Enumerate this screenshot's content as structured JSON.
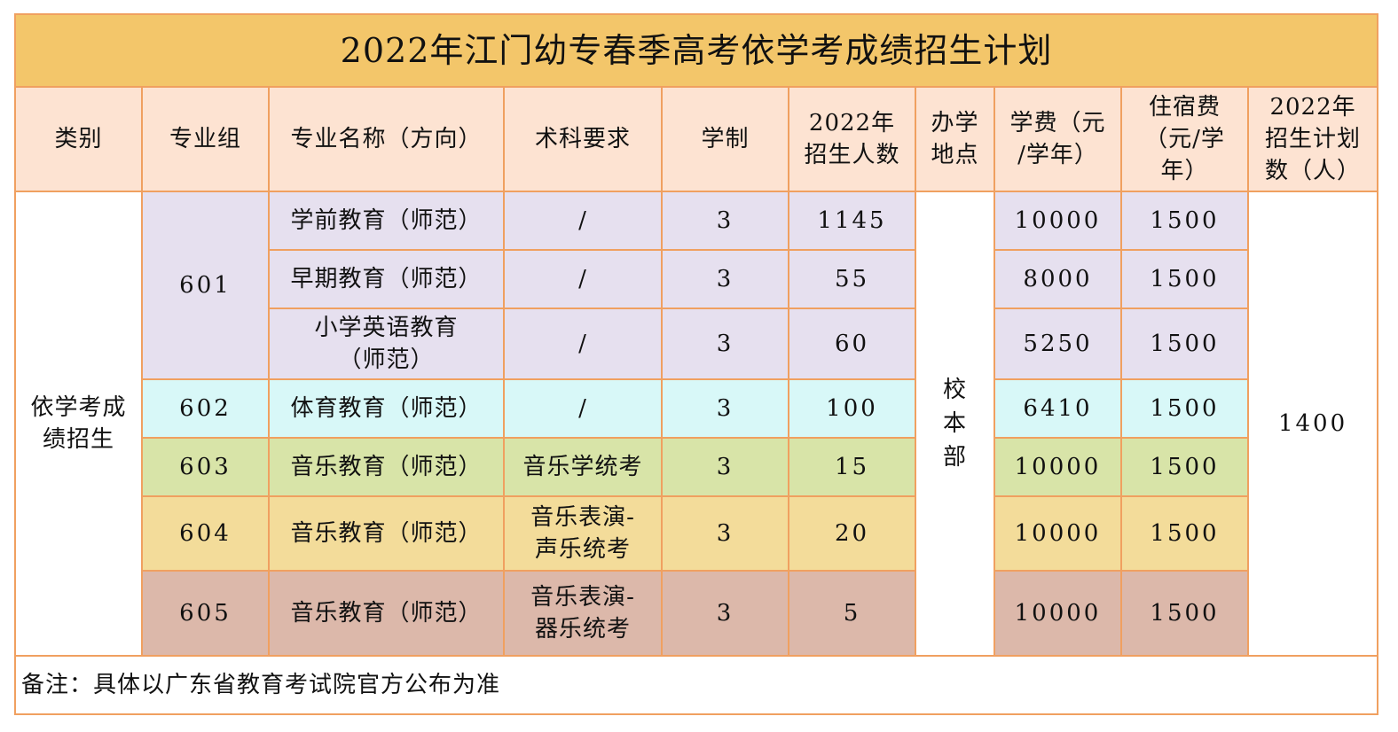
{
  "title": "2022年江门幼专春季高考依学考成绩招生计划",
  "headers": {
    "category": "类别",
    "group": "专业组",
    "major": "专业名称（方向）",
    "art": "术科要求",
    "years": "学制",
    "enroll2022_l1": "2022年",
    "enroll2022_l2": "招生人数",
    "campus_l1": "办学",
    "campus_l2": "地点",
    "tuition_l1": "学费（元",
    "tuition_l2": "/学年）",
    "dorm_l1": "住宿费",
    "dorm_l2": "（元/学",
    "dorm_l3": "年）",
    "plan_l1": "2022年",
    "plan_l2": "招生计划",
    "plan_l3": "数（人）"
  },
  "category_l1": "依学考成",
  "category_l2": "绩招生",
  "campus": [
    "校",
    "本",
    "部"
  ],
  "plan_total": "1400",
  "rows": [
    {
      "group": "601",
      "major": "学前教育（师范）",
      "art": "/",
      "years": "3",
      "enroll": "1145",
      "tuition": "10000",
      "dorm": "1500"
    },
    {
      "major": "早期教育（师范）",
      "art": "/",
      "years": "3",
      "enroll": "55",
      "tuition": "8000",
      "dorm": "1500"
    },
    {
      "major_l1": "小学英语教育",
      "major_l2": "（师范）",
      "art": "/",
      "years": "3",
      "enroll": "60",
      "tuition": "5250",
      "dorm": "1500"
    },
    {
      "group": "602",
      "major": "体育教育（师范）",
      "art": "/",
      "years": "3",
      "enroll": "100",
      "tuition": "6410",
      "dorm": "1500"
    },
    {
      "group": "603",
      "major": "音乐教育（师范）",
      "art": "音乐学统考",
      "years": "3",
      "enroll": "15",
      "tuition": "10000",
      "dorm": "1500"
    },
    {
      "group": "604",
      "major": "音乐教育（师范）",
      "art_l1": "音乐表演-",
      "art_l2": "声乐统考",
      "years": "3",
      "enroll": "20",
      "tuition": "10000",
      "dorm": "1500"
    },
    {
      "group": "605",
      "major": "音乐教育（师范）",
      "art_l1": "音乐表演-",
      "art_l2": "器乐统考",
      "years": "3",
      "enroll": "5",
      "tuition": "10000",
      "dorm": "1500"
    }
  ],
  "note": "备注：具体以广东省教育考试院官方公布为准",
  "colors": {
    "border": "#f0a060",
    "title_bg": "#f3c66a",
    "header_bg": "#fde3d2",
    "group601_bg": "#e6e0ef",
    "group602_bg": "#d8f8f8",
    "group603_bg": "#d8e4a8",
    "group604_bg": "#f3dc9a",
    "group605_bg": "#dcb8aa"
  }
}
